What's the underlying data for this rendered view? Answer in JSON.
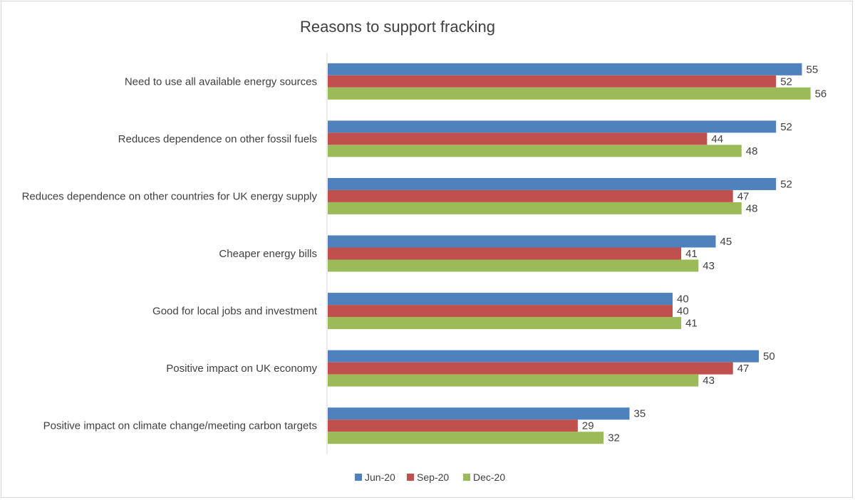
{
  "chart_data": {
    "type": "bar",
    "orientation": "horizontal",
    "title": "Reasons to support fracking",
    "categories": [
      "Need to use all available energy sources",
      "Reduces dependence on other fossil fuels",
      "Reduces dependence on other countries for UK energy supply",
      "Cheaper energy bills",
      "Good for local jobs and investment",
      "Positive impact on UK economy",
      "Positive impact on climate change/meeting carbon targets"
    ],
    "series": [
      {
        "name": "Jun-20",
        "color": "#4f81bd",
        "values": [
          55,
          52,
          52,
          45,
          40,
          50,
          35
        ]
      },
      {
        "name": "Sep-20",
        "color": "#c0504d",
        "values": [
          52,
          44,
          47,
          41,
          40,
          47,
          29
        ]
      },
      {
        "name": "Dec-20",
        "color": "#9bbb59",
        "values": [
          56,
          48,
          48,
          43,
          41,
          43,
          32
        ]
      }
    ],
    "xlim": [
      0,
      60
    ],
    "grid": false,
    "legend_position": "bottom",
    "data_labels": true
  }
}
